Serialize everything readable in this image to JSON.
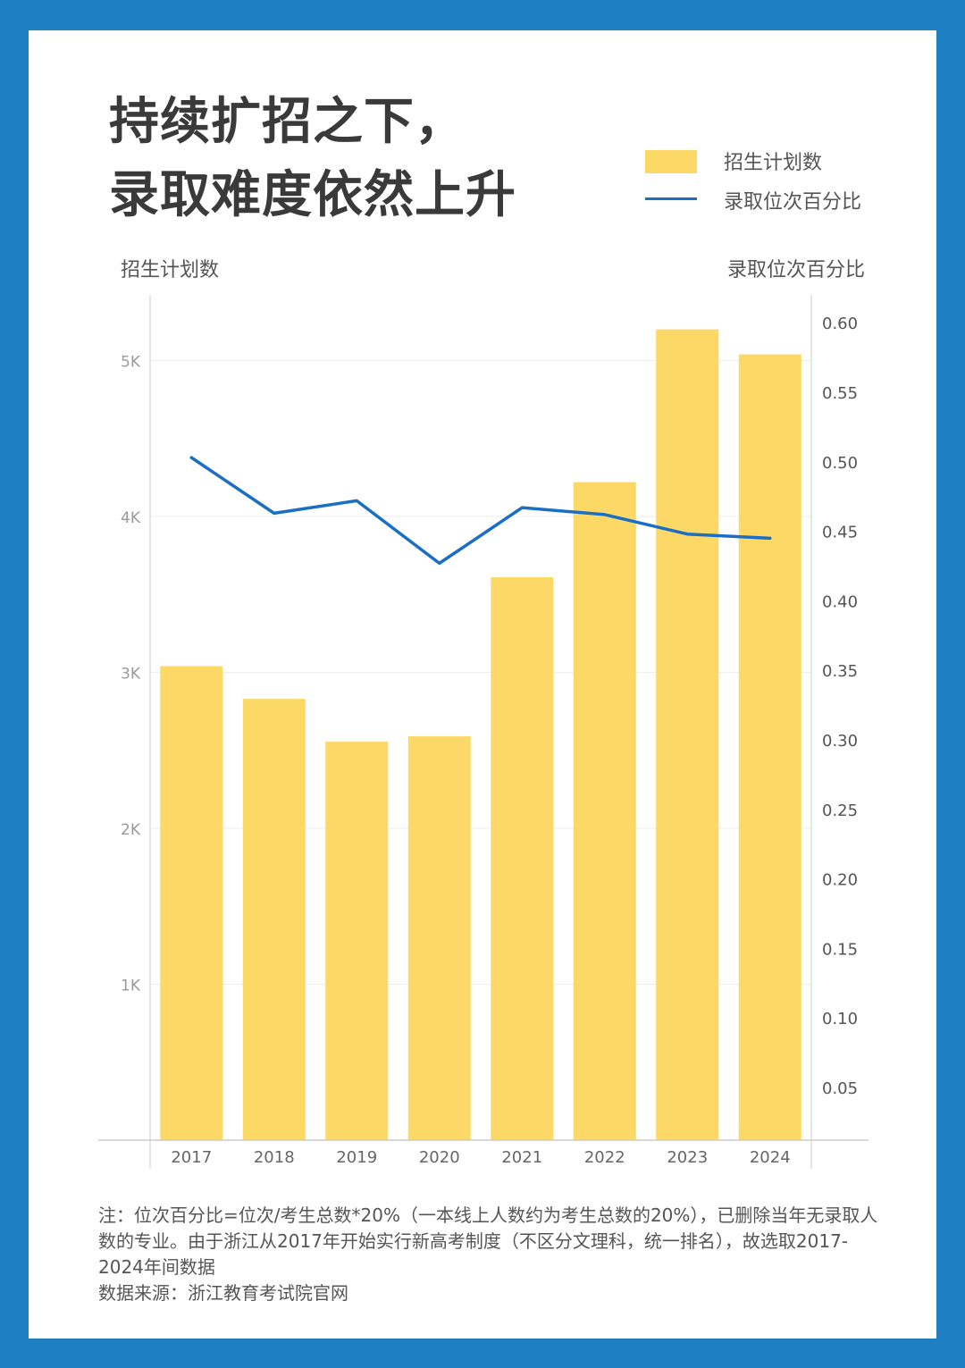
{
  "title": {
    "line1": "持续扩招之下，",
    "line2": "录取难度依然上升"
  },
  "legend": {
    "bar_label": "招生计划数",
    "line_label": "录取位次百分比"
  },
  "axes": {
    "left_title": "招生计划数",
    "right_title": "录取位次百分比"
  },
  "chart_data": {
    "type": "bar",
    "categories": [
      "2017",
      "2018",
      "2019",
      "2020",
      "2021",
      "2022",
      "2023",
      "2024"
    ],
    "series": [
      {
        "name": "招生计划数",
        "type": "bar",
        "axis": "left",
        "values": [
          3040,
          2830,
          2555,
          2590,
          3610,
          4220,
          5200,
          5040
        ],
        "color": "#fcd967"
      },
      {
        "name": "录取位次百分比",
        "type": "line",
        "axis": "right",
        "values": [
          0.503,
          0.463,
          0.472,
          0.427,
          0.467,
          0.462,
          0.448,
          0.445
        ],
        "color": "#1a6fc4"
      }
    ],
    "left_axis": {
      "ylim": [
        0,
        5300
      ],
      "ticks": [
        1000,
        2000,
        3000,
        4000,
        5000
      ],
      "tick_labels": [
        "1K",
        "2K",
        "3K",
        "4K",
        "5K"
      ]
    },
    "right_axis": {
      "ylim": [
        0,
        0.6
      ],
      "ticks": [
        0.05,
        0.1,
        0.15,
        0.2,
        0.25,
        0.3,
        0.35,
        0.4,
        0.45,
        0.5,
        0.55,
        0.6
      ],
      "tick_labels": [
        "0.05",
        "0.10",
        "0.15",
        "0.20",
        "0.25",
        "0.30",
        "0.35",
        "0.40",
        "0.45",
        "0.50",
        "0.55",
        "0.60"
      ]
    },
    "grid": true,
    "legend_position": "top-right"
  },
  "note": {
    "line1": "注：位次百分比=位次/考生总数*20%（一本线上人数约为考生总数的20%），已删除当年无录取人数的专业。由于浙江从2017年开始实行新高考制度（不区分文理科，统一排名），故选取2017-2024年间数据",
    "line2": "数据来源：浙江教育考试院官网"
  }
}
